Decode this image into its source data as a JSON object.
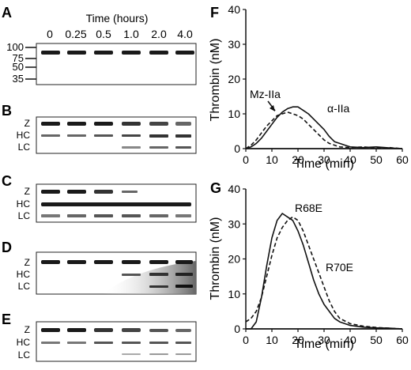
{
  "panels": {
    "A": {
      "label": "A",
      "time_title": "Time (hours)",
      "time_points": [
        "0",
        "0.25",
        "0.5",
        "1.0",
        "2.0",
        "4.0"
      ],
      "markers": [
        "100",
        "75",
        "50",
        "35"
      ]
    },
    "B": {
      "label": "B",
      "bands": [
        "Z",
        "HC",
        "LC"
      ]
    },
    "C": {
      "label": "C",
      "bands": [
        "Z",
        "HC",
        "LC"
      ]
    },
    "D": {
      "label": "D",
      "bands": [
        "Z",
        "HC",
        "LC"
      ]
    },
    "E": {
      "label": "E",
      "bands": [
        "Z",
        "HC",
        "LC"
      ]
    }
  },
  "colors": {
    "ink": "#111111",
    "band": "#1a1a1a",
    "smear": "#666666"
  },
  "chart_data": [
    {
      "panel_label": "F",
      "type": "line",
      "xlabel": "Time (min)",
      "ylabel": "Thrombin (nM)",
      "xlim": [
        0,
        60
      ],
      "ylim": [
        0,
        40
      ],
      "xticks": [
        0,
        10,
        20,
        30,
        40,
        50,
        60
      ],
      "yticks": [
        0,
        10,
        20,
        30,
        40
      ],
      "grid": false,
      "baseline": 0,
      "annotations": [
        "Mz-IIa",
        "α-IIa"
      ],
      "series": [
        {
          "name": "α-IIa",
          "style": "solid",
          "x": [
            0,
            2,
            4,
            6,
            8,
            10,
            12,
            14,
            16,
            18,
            20,
            22,
            24,
            26,
            28,
            30,
            32,
            34,
            36,
            38,
            40,
            45,
            50,
            55,
            60
          ],
          "y": [
            0,
            0.5,
            1.5,
            3,
            5,
            7,
            9,
            10.5,
            11.5,
            12,
            12,
            11,
            10,
            8.5,
            7,
            5.5,
            3.5,
            2,
            1.5,
            1,
            0.5,
            0.3,
            0.5,
            0.2,
            0
          ]
        },
        {
          "name": "Mz-IIa",
          "style": "dashed",
          "x": [
            0,
            2,
            4,
            6,
            8,
            10,
            12,
            14,
            16,
            18,
            20,
            22,
            24,
            26,
            28,
            30,
            32,
            34,
            36,
            40,
            45,
            50,
            55,
            60
          ],
          "y": [
            0,
            1,
            2.5,
            4.5,
            6.5,
            8,
            9.5,
            10,
            10.5,
            10,
            9.5,
            8.5,
            7,
            5.5,
            4,
            2.5,
            1.5,
            1,
            0.5,
            0.3,
            0.5,
            0.2,
            0.3,
            0
          ]
        }
      ]
    },
    {
      "panel_label": "G",
      "type": "line",
      "xlabel": "Time (min)",
      "ylabel": "Thrombin (nM)",
      "xlim": [
        0,
        60
      ],
      "ylim": [
        0,
        40
      ],
      "xticks": [
        0,
        10,
        20,
        30,
        40,
        50,
        60
      ],
      "yticks": [
        0,
        10,
        20,
        30,
        40
      ],
      "grid": false,
      "baseline": 0,
      "annotations": [
        "R68E",
        "R70E"
      ],
      "series": [
        {
          "name": "R68E",
          "style": "solid",
          "x": [
            0,
            2,
            4,
            6,
            8,
            10,
            12,
            14,
            16,
            18,
            20,
            22,
            24,
            26,
            28,
            30,
            32,
            34,
            36,
            40,
            45,
            50,
            55,
            60
          ],
          "y": [
            0,
            0,
            2,
            9,
            18,
            26,
            31,
            33,
            32,
            31,
            28,
            24,
            19,
            14,
            10,
            7,
            5,
            3,
            2,
            1,
            0.5,
            0.3,
            0.2,
            0
          ]
        },
        {
          "name": "R70E",
          "style": "dashed",
          "x": [
            0,
            2,
            4,
            6,
            8,
            10,
            12,
            14,
            16,
            18,
            20,
            22,
            24,
            26,
            28,
            30,
            32,
            34,
            36,
            40,
            45,
            50,
            55,
            60
          ],
          "y": [
            2,
            3,
            5,
            9,
            15,
            21,
            26,
            29,
            31,
            32,
            31,
            28,
            24,
            20,
            16,
            12,
            8,
            5,
            3,
            1.5,
            0.8,
            0.4,
            0.2,
            0
          ]
        }
      ]
    }
  ]
}
